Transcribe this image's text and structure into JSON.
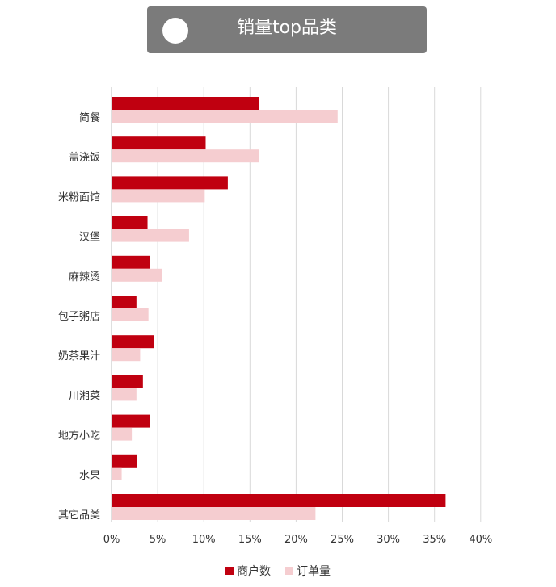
{
  "title": "销量top品类",
  "colors": {
    "merchants": "#c00010",
    "orders": "#f5cdd0",
    "grid": "#d9d9d9",
    "titleBar": "#7b7b7b"
  },
  "chart_data": {
    "type": "bar",
    "orientation": "horizontal",
    "title": "销量top品类",
    "categories": [
      "简餐",
      "盖浇饭",
      "米粉面馆",
      "汉堡",
      "麻辣烫",
      "包子粥店",
      "奶茶果汁",
      "川湘菜",
      "地方小吃",
      "水果",
      "其它品类"
    ],
    "series": [
      {
        "name": "商户数",
        "values": [
          16.0,
          10.2,
          12.6,
          3.9,
          4.2,
          2.7,
          4.6,
          3.4,
          4.2,
          2.8,
          36.2
        ]
      },
      {
        "name": "订单量",
        "values": [
          24.5,
          16.0,
          10.1,
          8.4,
          5.5,
          4.0,
          3.1,
          2.7,
          2.2,
          1.1,
          22.1
        ]
      }
    ],
    "xlim": [
      0,
      40
    ],
    "xticks": [
      "0%",
      "5%",
      "10%",
      "15%",
      "20%",
      "25%",
      "30%",
      "35%",
      "40%"
    ],
    "grid": true,
    "legend": "bottom"
  }
}
